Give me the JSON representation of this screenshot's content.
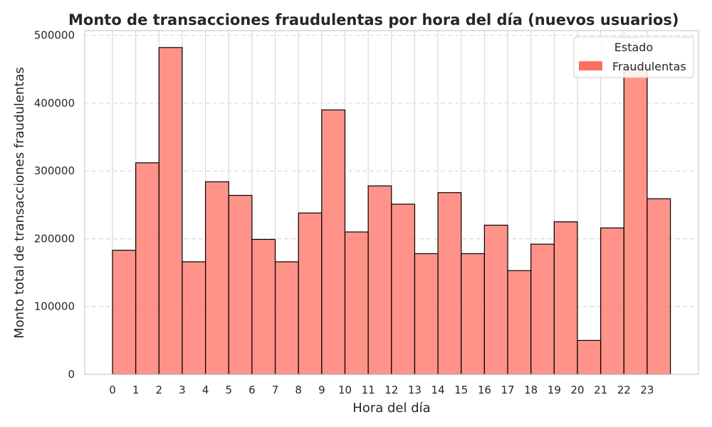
{
  "chart_data": {
    "type": "bar",
    "title": "Monto de transacciones fraudulentas por hora del día (nuevos usuarios)",
    "xlabel": "Hora del día",
    "ylabel": "Monto total de transacciones fraudulentas",
    "categories": [
      "0",
      "1",
      "2",
      "3",
      "4",
      "5",
      "6",
      "7",
      "8",
      "9",
      "10",
      "11",
      "12",
      "13",
      "14",
      "15",
      "16",
      "17",
      "18",
      "19",
      "20",
      "21",
      "22",
      "23"
    ],
    "series": [
      {
        "name": "Fraudulentas",
        "values": [
          183000,
          312000,
          482000,
          166000,
          284000,
          264000,
          199000,
          166000,
          238000,
          390000,
          210000,
          278000,
          251000,
          178000,
          268000,
          178000,
          220000,
          153000,
          192000,
          225000,
          50000,
          216000,
          452000,
          259000
        ]
      }
    ],
    "ylim": [
      0,
      507000
    ],
    "yticks": [
      0,
      100000,
      200000,
      300000,
      400000,
      500000
    ],
    "yticklabels": [
      "0",
      "100000",
      "200000",
      "300000",
      "400000",
      "500000"
    ],
    "grid": true,
    "legend": {
      "title": "Estado",
      "placement": "top-right"
    },
    "colors": {
      "bar_fill": "#ff6f61",
      "bar_stroke": "#000000",
      "grid": "#d9d9d9"
    }
  }
}
